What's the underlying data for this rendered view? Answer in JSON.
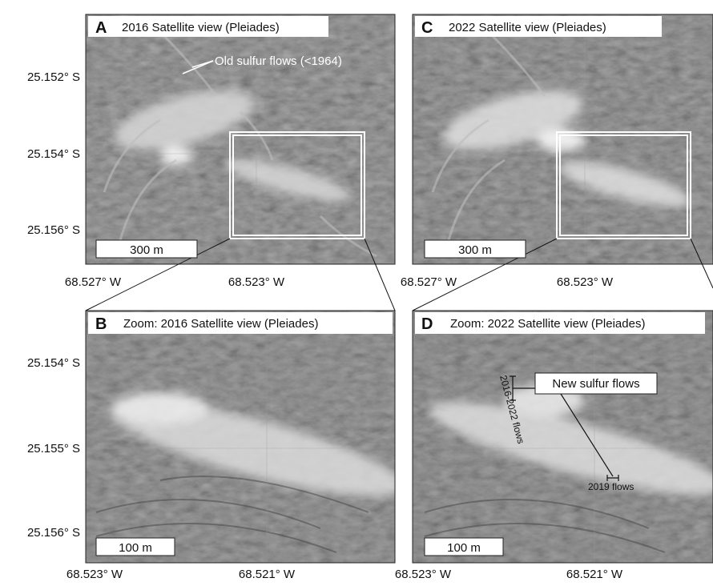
{
  "panels": [
    {
      "label": "A",
      "title": "2016 Satellite view (Pleiades)",
      "scale_bar": "300 m",
      "lat_labels": [
        "25.152° S",
        "25.154° S",
        "25.156° S"
      ],
      "lon_labels": [
        "68.527° W",
        "68.523° W"
      ],
      "annotation": "Old sulfur flows (<1964)"
    },
    {
      "label": "C",
      "title": "2022 Satellite view (Pleiades)",
      "scale_bar": "300 m",
      "lon_labels": [
        "68.527° W",
        "68.523° W"
      ]
    },
    {
      "label": "B",
      "title": "Zoom: 2016 Satellite view (Pleiades)",
      "scale_bar": "100 m",
      "lat_labels": [
        "25.154° S",
        "25.155° S",
        "25.156° S"
      ],
      "lon_labels": [
        "68.523° W",
        "68.521° W"
      ]
    },
    {
      "label": "D",
      "title": "Zoom: 2022 Satellite view (Pleiades)",
      "scale_bar": "100 m",
      "lon_labels": [
        "68.523° W",
        "68.521° W"
      ],
      "annotations": [
        "New sulfur flows",
        "2016-2022 flows",
        "2019 flows"
      ]
    }
  ]
}
